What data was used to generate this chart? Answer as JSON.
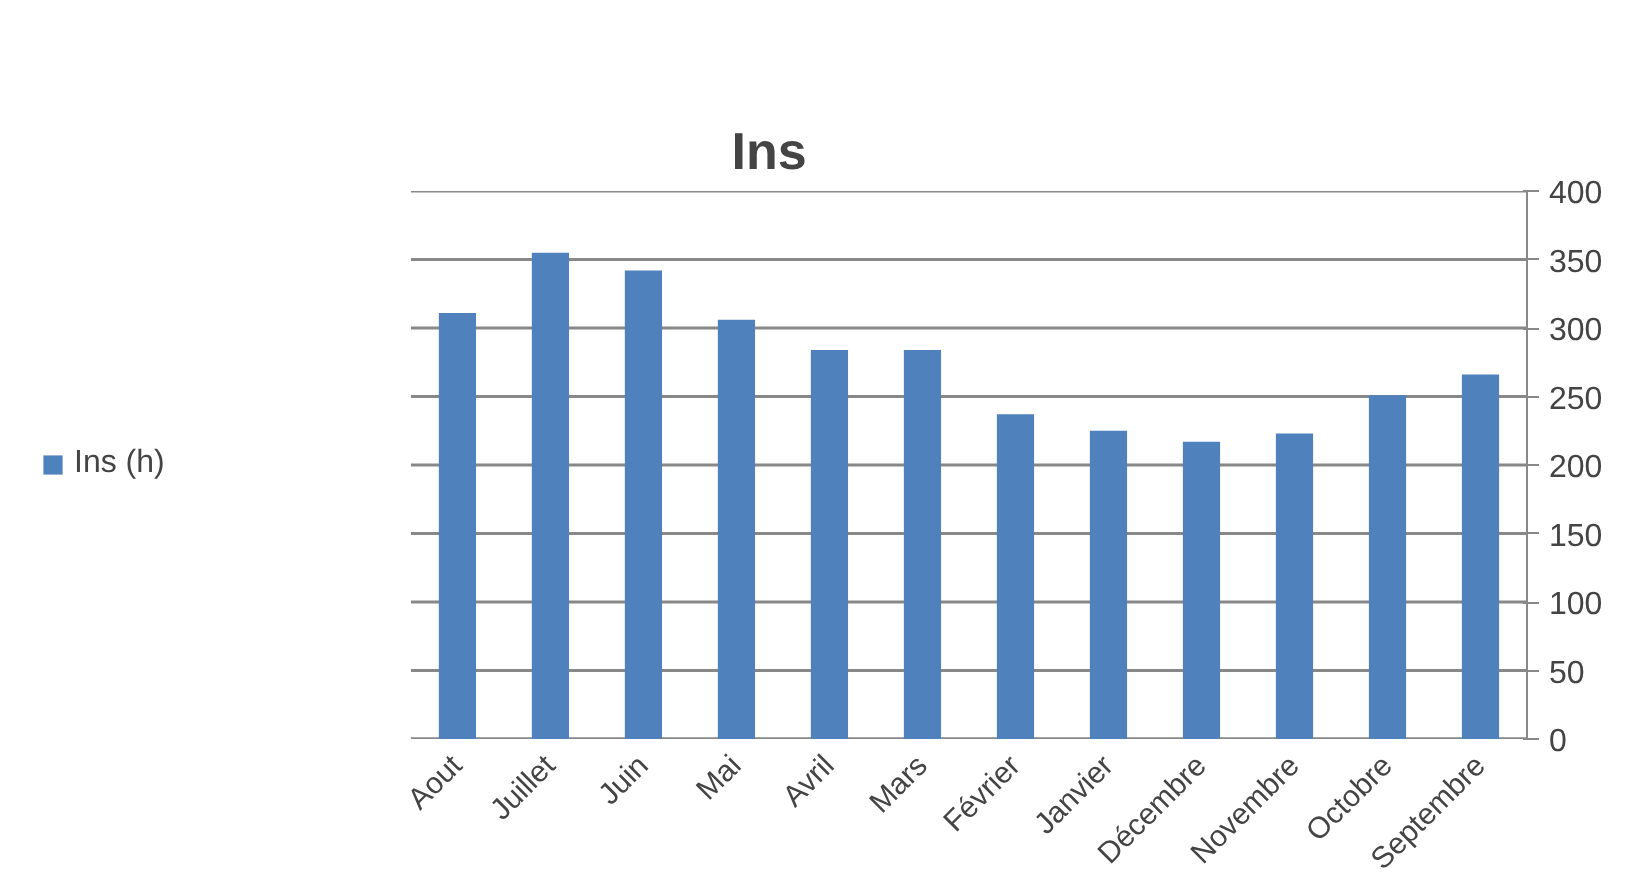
{
  "chart_data": {
    "type": "bar",
    "title": "Ins",
    "categories": [
      "Aout",
      "Juillet",
      "Juin",
      "Mai",
      "Avril",
      "Mars",
      "Février",
      "Janvier",
      "Décembre",
      "Novembre",
      "Octobre",
      "Septembre"
    ],
    "series": [
      {
        "name": "Ins (h)",
        "color": "#4f81bd",
        "values": [
          311,
          355,
          342,
          306,
          284,
          284,
          237,
          225,
          217,
          223,
          251,
          266
        ]
      }
    ],
    "ylim": [
      0,
      400
    ],
    "yticks": [
      0,
      50,
      100,
      150,
      200,
      250,
      300,
      350,
      400
    ],
    "grid": "y",
    "legend": "left"
  }
}
